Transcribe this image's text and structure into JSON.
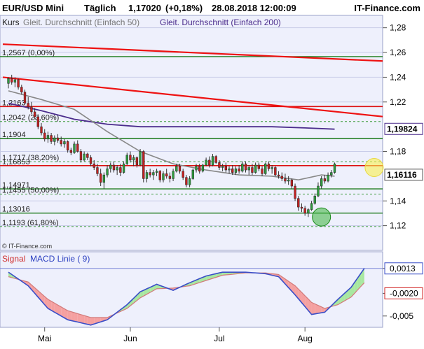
{
  "header": {
    "instrument": "EUR/USD Mini",
    "interval": "Täglich",
    "price": "1,17020",
    "change": "(+0,18%)",
    "datetime": "28.08.2018 12:00:09",
    "brand": "IT-Finance.com"
  },
  "legend": {
    "kurs": "Kurs",
    "sma50": "Gleit. Durchschnitt (Einfach 50)",
    "sma200": "Gleit. Durchschnitt (Einfach 200)"
  },
  "watermark": "© IT-Finance.com",
  "macd_legend": {
    "signal": "Signal",
    "macd": "MACD Linie ( 9)"
  },
  "colors": {
    "plot_bg": "#eef0fc",
    "candle_up": "#2e9e3e",
    "candle_down": "#c42020",
    "sma50": "#888888",
    "sma200": "#4b2c8c",
    "trendline": "#ee1111",
    "support": "#1a7a1a",
    "resistance": "#dd1111",
    "macd_line": "#3a4ec8",
    "signal_fill_red": "#f5a0a0",
    "signal_fill_green": "#a8e8a0"
  },
  "chart_data": [
    {
      "type": "candlestick",
      "title": "EUR/USD Mini Täglich",
      "x_ticks": [
        "Mai",
        "Jun",
        "Jul",
        "Aug"
      ],
      "y_ticks": [
        "1,28",
        "1,26",
        "1,24",
        "1,22",
        "1,18",
        "1,14",
        "1,12"
      ],
      "ylim": [
        1.1,
        1.29
      ],
      "price_marker_labels": [
        "1,19824",
        "1,16116"
      ],
      "levels": [
        {
          "label": "1,2567 (0,00%)",
          "value": 1.2567,
          "style": "green"
        },
        {
          "label": "1,2163",
          "value": 1.2163,
          "style": "red"
        },
        {
          "label": "1,2042 (23,60%)",
          "value": 1.2042,
          "style": "green-dashed"
        },
        {
          "label": "1,1904",
          "value": 1.1904,
          "style": "green"
        },
        {
          "label": "1,1717 (38,20%)",
          "value": 1.1717,
          "style": "green-dashed"
        },
        {
          "label": "1,16853",
          "value": 1.16853,
          "style": "red"
        },
        {
          "label": "1,14971",
          "value": 1.14971,
          "style": "green"
        },
        {
          "label": "1,1455 (50,00%)",
          "value": 1.1455,
          "style": "green-dashed"
        },
        {
          "label": "1,13016",
          "value": 1.13016,
          "style": "green"
        },
        {
          "label": "1,1193 (61,80%)",
          "value": 1.1193,
          "style": "green-dashed"
        }
      ],
      "trendlines": [
        {
          "from": [
            0,
            1.2667
          ],
          "to": [
            115,
            1.2531
          ]
        },
        {
          "from": [
            0,
            1.24
          ],
          "to": [
            115,
            1.2082
          ]
        }
      ],
      "candles": [
        [
          1.235,
          1.24,
          1.231,
          1.239
        ],
        [
          1.239,
          1.242,
          1.234,
          1.236
        ],
        [
          1.236,
          1.24,
          1.232,
          1.238
        ],
        [
          1.238,
          1.239,
          1.23,
          1.232
        ],
        [
          1.232,
          1.234,
          1.226,
          1.228
        ],
        [
          1.228,
          1.23,
          1.218,
          1.219
        ],
        [
          1.219,
          1.224,
          1.214,
          1.216
        ],
        [
          1.216,
          1.22,
          1.21,
          1.212
        ],
        [
          1.212,
          1.215,
          1.206,
          1.208
        ],
        [
          1.208,
          1.21,
          1.198,
          1.2
        ],
        [
          1.2,
          1.203,
          1.193,
          1.195
        ],
        [
          1.195,
          1.198,
          1.188,
          1.19
        ],
        [
          1.19,
          1.196,
          1.187,
          1.193
        ],
        [
          1.193,
          1.195,
          1.186,
          1.188
        ],
        [
          1.188,
          1.193,
          1.185,
          1.191
        ],
        [
          1.191,
          1.194,
          1.187,
          1.189
        ],
        [
          1.189,
          1.192,
          1.184,
          1.186
        ],
        [
          1.186,
          1.19,
          1.183,
          1.188
        ],
        [
          1.188,
          1.189,
          1.179,
          1.181
        ],
        [
          1.181,
          1.183,
          1.177,
          1.179
        ],
        [
          1.179,
          1.188,
          1.178,
          1.186
        ],
        [
          1.186,
          1.189,
          1.179,
          1.18
        ],
        [
          1.18,
          1.182,
          1.171,
          1.173
        ],
        [
          1.173,
          1.18,
          1.172,
          1.178
        ],
        [
          1.178,
          1.179,
          1.173,
          1.175
        ],
        [
          1.175,
          1.177,
          1.168,
          1.17
        ],
        [
          1.17,
          1.173,
          1.165,
          1.167
        ],
        [
          1.167,
          1.17,
          1.16,
          1.162
        ],
        [
          1.162,
          1.166,
          1.152,
          1.155
        ],
        [
          1.155,
          1.163,
          1.15,
          1.161
        ],
        [
          1.161,
          1.169,
          1.159,
          1.166
        ],
        [
          1.166,
          1.171,
          1.163,
          1.169
        ],
        [
          1.169,
          1.172,
          1.163,
          1.165
        ],
        [
          1.165,
          1.169,
          1.161,
          1.167
        ],
        [
          1.167,
          1.17,
          1.16,
          1.163
        ],
        [
          1.163,
          1.172,
          1.162,
          1.17
        ],
        [
          1.17,
          1.179,
          1.169,
          1.177
        ],
        [
          1.177,
          1.18,
          1.171,
          1.173
        ],
        [
          1.173,
          1.177,
          1.168,
          1.175
        ],
        [
          1.175,
          1.176,
          1.167,
          1.169
        ],
        [
          1.169,
          1.182,
          1.168,
          1.18
        ],
        [
          1.18,
          1.181,
          1.155,
          1.158
        ],
        [
          1.158,
          1.165,
          1.155,
          1.163
        ],
        [
          1.163,
          1.166,
          1.159,
          1.161
        ],
        [
          1.161,
          1.165,
          1.157,
          1.163
        ],
        [
          1.163,
          1.166,
          1.16,
          1.164
        ],
        [
          1.164,
          1.165,
          1.155,
          1.157
        ],
        [
          1.157,
          1.164,
          1.155,
          1.162
        ],
        [
          1.162,
          1.166,
          1.158,
          1.16
        ],
        [
          1.16,
          1.163,
          1.155,
          1.158
        ],
        [
          1.158,
          1.166,
          1.156,
          1.164
        ],
        [
          1.164,
          1.17,
          1.163,
          1.168
        ],
        [
          1.168,
          1.17,
          1.162,
          1.164
        ],
        [
          1.164,
          1.166,
          1.157,
          1.159
        ],
        [
          1.159,
          1.161,
          1.151,
          1.153
        ],
        [
          1.153,
          1.16,
          1.151,
          1.158
        ],
        [
          1.158,
          1.166,
          1.157,
          1.165
        ],
        [
          1.165,
          1.17,
          1.163,
          1.168
        ],
        [
          1.168,
          1.17,
          1.162,
          1.164
        ],
        [
          1.164,
          1.17,
          1.163,
          1.169
        ],
        [
          1.169,
          1.175,
          1.168,
          1.173
        ],
        [
          1.173,
          1.176,
          1.167,
          1.169
        ],
        [
          1.169,
          1.178,
          1.168,
          1.176
        ],
        [
          1.176,
          1.177,
          1.17,
          1.171
        ],
        [
          1.171,
          1.173,
          1.165,
          1.167
        ],
        [
          1.167,
          1.17,
          1.164,
          1.168
        ],
        [
          1.168,
          1.171,
          1.163,
          1.165
        ],
        [
          1.165,
          1.168,
          1.162,
          1.166
        ],
        [
          1.166,
          1.169,
          1.161,
          1.163
        ],
        [
          1.163,
          1.168,
          1.161,
          1.166
        ],
        [
          1.166,
          1.169,
          1.162,
          1.164
        ],
        [
          1.164,
          1.172,
          1.163,
          1.17
        ],
        [
          1.17,
          1.172,
          1.163,
          1.165
        ],
        [
          1.165,
          1.169,
          1.161,
          1.167
        ],
        [
          1.167,
          1.17,
          1.161,
          1.163
        ],
        [
          1.163,
          1.171,
          1.162,
          1.169
        ],
        [
          1.169,
          1.171,
          1.164,
          1.166
        ],
        [
          1.166,
          1.168,
          1.16,
          1.162
        ],
        [
          1.162,
          1.171,
          1.161,
          1.17
        ],
        [
          1.17,
          1.172,
          1.164,
          1.166
        ],
        [
          1.166,
          1.169,
          1.162,
          1.167
        ],
        [
          1.167,
          1.168,
          1.16,
          1.161
        ],
        [
          1.161,
          1.164,
          1.158,
          1.16
        ],
        [
          1.16,
          1.163,
          1.156,
          1.158
        ],
        [
          1.158,
          1.162,
          1.154,
          1.156
        ],
        [
          1.156,
          1.16,
          1.153,
          1.157
        ],
        [
          1.157,
          1.158,
          1.15,
          1.152
        ],
        [
          1.152,
          1.154,
          1.14,
          1.142
        ],
        [
          1.142,
          1.144,
          1.132,
          1.135
        ],
        [
          1.135,
          1.138,
          1.131,
          1.134
        ],
        [
          1.134,
          1.136,
          1.128,
          1.13
        ],
        [
          1.13,
          1.134,
          1.127,
          1.133
        ],
        [
          1.133,
          1.14,
          1.132,
          1.138
        ],
        [
          1.138,
          1.146,
          1.137,
          1.144
        ],
        [
          1.144,
          1.155,
          1.143,
          1.152
        ],
        [
          1.152,
          1.16,
          1.15,
          1.158
        ],
        [
          1.158,
          1.161,
          1.154,
          1.156
        ],
        [
          1.156,
          1.163,
          1.155,
          1.161
        ],
        [
          1.161,
          1.165,
          1.159,
          1.163
        ],
        [
          1.163,
          1.171,
          1.162,
          1.17
        ]
      ],
      "sma50": [
        [
          0,
          1.229
        ],
        [
          10,
          1.222
        ],
        [
          20,
          1.214
        ],
        [
          30,
          1.196
        ],
        [
          40,
          1.18
        ],
        [
          50,
          1.17
        ],
        [
          60,
          1.165
        ],
        [
          70,
          1.161
        ],
        [
          80,
          1.16
        ],
        [
          88,
          1.157
        ],
        [
          95,
          1.161
        ],
        [
          99,
          1.16
        ]
      ],
      "sma200": [
        [
          0,
          1.219
        ],
        [
          10,
          1.213
        ],
        [
          20,
          1.206
        ],
        [
          30,
          1.202
        ],
        [
          40,
          1.2
        ],
        [
          50,
          1.2
        ],
        [
          60,
          1.2
        ],
        [
          70,
          1.2
        ],
        [
          80,
          1.2
        ],
        [
          90,
          1.199
        ],
        [
          99,
          1.198
        ]
      ],
      "markers": [
        {
          "type": "circle",
          "color": "green",
          "index": 95,
          "value": 1.127
        },
        {
          "type": "circle",
          "color": "yellow",
          "index": 111,
          "value": 1.167
        }
      ]
    },
    {
      "type": "line",
      "title": "MACD",
      "y_ticks": [
        "0,0013",
        "-0,0020",
        "-0,005"
      ],
      "ylim": [
        -0.0065,
        0.0035
      ],
      "macd": [
        [
          0,
          0.0008
        ],
        [
          6,
          -0.001
        ],
        [
          12,
          -0.004
        ],
        [
          18,
          -0.0055
        ],
        [
          25,
          -0.0062
        ],
        [
          30,
          -0.0055
        ],
        [
          36,
          -0.0035
        ],
        [
          40,
          -0.0018
        ],
        [
          45,
          -0.0008
        ],
        [
          50,
          -0.0016
        ],
        [
          55,
          -0.0006
        ],
        [
          60,
          0.0003
        ],
        [
          65,
          0.0008
        ],
        [
          72,
          0.0008
        ],
        [
          78,
          0.0006
        ],
        [
          82,
          0.0002
        ],
        [
          87,
          -0.0022
        ],
        [
          92,
          -0.0048
        ],
        [
          96,
          -0.0045
        ],
        [
          100,
          -0.0028
        ],
        [
          104,
          -0.0012
        ],
        [
          108,
          0.0013
        ]
      ],
      "signal": [
        [
          0,
          0.0002
        ],
        [
          6,
          -0.0005
        ],
        [
          12,
          -0.0028
        ],
        [
          18,
          -0.0043
        ],
        [
          25,
          -0.0052
        ],
        [
          30,
          -0.0052
        ],
        [
          36,
          -0.004
        ],
        [
          40,
          -0.0026
        ],
        [
          45,
          -0.0014
        ],
        [
          50,
          -0.0013
        ],
        [
          55,
          -0.001
        ],
        [
          60,
          -0.0003
        ],
        [
          65,
          0.0004
        ],
        [
          72,
          0.0007
        ],
        [
          78,
          0.0007
        ],
        [
          82,
          0.0005
        ],
        [
          87,
          -0.001
        ],
        [
          92,
          -0.0032
        ],
        [
          96,
          -0.004
        ],
        [
          100,
          -0.0035
        ],
        [
          104,
          -0.0025
        ],
        [
          108,
          -0.0006
        ]
      ]
    }
  ]
}
